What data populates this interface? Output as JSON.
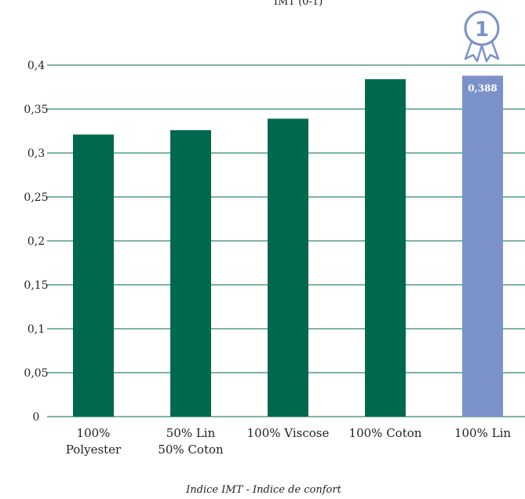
{
  "colors": {
    "bar": "#00694d",
    "highlight_bar": "#7b92c9",
    "gridline": "#00694d",
    "text": "#222222",
    "medal": "#7b92c9"
  },
  "badge": {
    "icon": "award-ribbon-icon",
    "number": "1"
  },
  "chart_data": {
    "type": "bar",
    "title": "IMT (0-1)",
    "caption": "Indice IMT - Indice de confort",
    "categories": [
      [
        "100%",
        "Polyester"
      ],
      [
        "50% Lin",
        "50% Coton"
      ],
      [
        "100% Viscose"
      ],
      [
        "100% Coton"
      ],
      [
        "100% Lin"
      ]
    ],
    "values": [
      0.321,
      0.326,
      0.339,
      0.384,
      0.388
    ],
    "highlight_index": 4,
    "data_labels": [
      "",
      "",
      "",
      "",
      "0,388"
    ],
    "ylim": [
      0,
      0.4
    ],
    "yticks": [
      0,
      0.05,
      0.1,
      0.15,
      0.2,
      0.25,
      0.3,
      0.35,
      0.4
    ],
    "ytick_labels": [
      "0",
      "0,05",
      "0,1",
      "0,15",
      "0,2",
      "0,25",
      "0,3",
      "0,35",
      "0,4"
    ],
    "grid": true,
    "legend": "none"
  }
}
